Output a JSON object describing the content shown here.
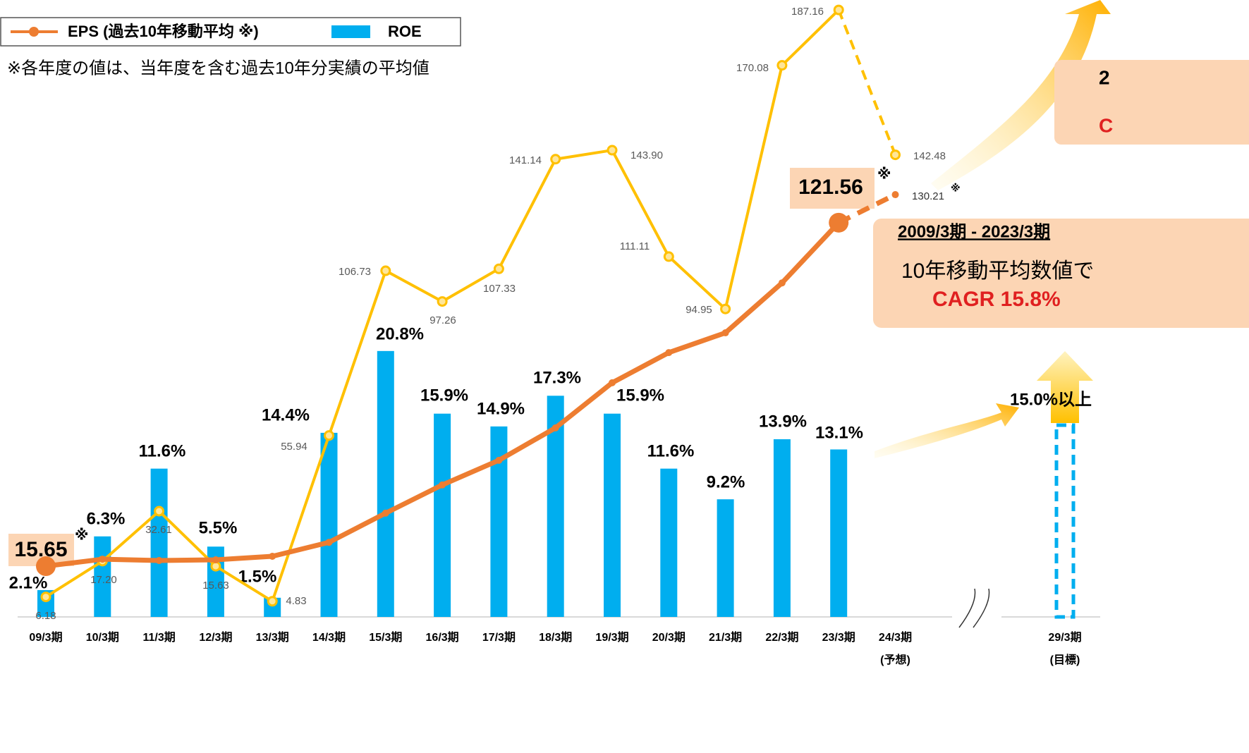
{
  "chart_data": {
    "type": "combo",
    "categories": [
      "09/3期",
      "10/3期",
      "11/3期",
      "12/3期",
      "13/3期",
      "14/3期",
      "15/3期",
      "16/3期",
      "17/3期",
      "18/3期",
      "19/3期",
      "20/3期",
      "21/3期",
      "22/3期",
      "23/3期",
      "24/3期",
      "29/3期"
    ],
    "category_sublabels": [
      null,
      null,
      null,
      null,
      null,
      null,
      null,
      null,
      null,
      null,
      null,
      null,
      null,
      null,
      null,
      "(予想)",
      "(目標)"
    ],
    "ylim": [
      0,
      190
    ],
    "y2lim": [
      0,
      48.2
    ],
    "series": [
      {
        "name": "ROE",
        "type": "bar",
        "axis": "y2",
        "color": "#00aeef",
        "dashed_last": true,
        "values": [
          2.1,
          6.3,
          11.6,
          5.5,
          1.5,
          14.4,
          20.8,
          15.9,
          14.9,
          17.3,
          15.9,
          11.6,
          9.2,
          13.9,
          13.1,
          null,
          15.0
        ],
        "value_labels": [
          "2.1%",
          "6.3%",
          "11.6%",
          "5.5%",
          "1.5%",
          "14.4%",
          "20.8%",
          "15.9%",
          "14.9%",
          "17.3%",
          "15.9%",
          "11.6%",
          "9.2%",
          "13.9%",
          "13.1%",
          null,
          "15.0%以上"
        ]
      },
      {
        "type": "line",
        "color": "#ffc000",
        "dashed_last_segment": true,
        "values": [
          6.18,
          17.2,
          32.61,
          15.63,
          4.83,
          55.94,
          106.73,
          97.26,
          107.33,
          141.14,
          143.9,
          111.11,
          94.95,
          170.08,
          187.16,
          142.48,
          null
        ],
        "value_labels": [
          "6.18",
          "17.20",
          "32.61",
          "15.63",
          "4.83",
          "55.94",
          "106.73",
          "97.26",
          "107.33",
          "141.14",
          "143.90",
          "111.11",
          "94.95",
          "170.08",
          "187.16",
          "142.48",
          null
        ]
      },
      {
        "name": "EPS (過去10年移動平均 ※)",
        "type": "line",
        "color": "#ed7d31",
        "dashed_last_segment": true,
        "values": [
          15.65,
          17.8,
          17.4,
          17.6,
          18.7,
          23.0,
          32.0,
          40.7,
          48.3,
          58.3,
          72.2,
          81.5,
          87.6,
          103.0,
          121.56,
          130.21,
          null
        ],
        "value_labels": [
          "15.65",
          null,
          null,
          null,
          null,
          null,
          null,
          null,
          null,
          null,
          null,
          null,
          null,
          null,
          "121.56",
          "130.21",
          null
        ]
      }
    ],
    "footnote_mark": "※",
    "note": "※各年度の値は、当年度を含む過去10年分実績の平均値",
    "callout": {
      "period": "2009/3期 - 2023/3期",
      "text": "10年移動平均数値で",
      "cagr": "CAGR 15.8%"
    },
    "target_box": {
      "line1": "2",
      "line2": "C"
    }
  }
}
